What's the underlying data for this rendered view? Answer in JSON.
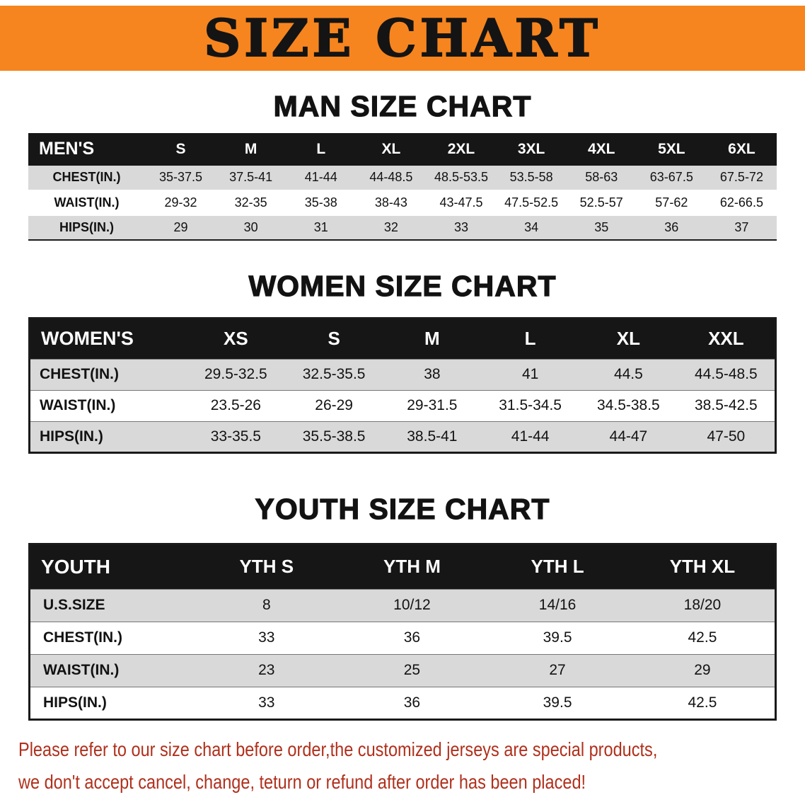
{
  "banner": {
    "title": "SIZE CHART"
  },
  "colors": {
    "banner-bg": "#f6851f",
    "table-header-bg": "#161616",
    "row-stripe": "#d9d9d9",
    "disclaimer-red": "#b0301c"
  },
  "sections": [
    {
      "key": "men",
      "heading": "MAN SIZE CHART",
      "table": {
        "header": [
          "MEN'S",
          "S",
          "M",
          "L",
          "XL",
          "2XL",
          "3XL",
          "4XL",
          "5XL",
          "6XL"
        ],
        "rows": [
          [
            "CHEST(IN.)",
            "35-37.5",
            "37.5-41",
            "41-44",
            "44-48.5",
            "48.5-53.5",
            "53.5-58",
            "58-63",
            "63-67.5",
            "67.5-72"
          ],
          [
            "WAIST(IN.)",
            "29-32",
            "32-35",
            "35-38",
            "38-43",
            "43-47.5",
            "47.5-52.5",
            "52.5-57",
            "57-62",
            "62-66.5"
          ],
          [
            "HIPS(IN.)",
            "29",
            "30",
            "31",
            "32",
            "33",
            "34",
            "35",
            "36",
            "37"
          ]
        ]
      }
    },
    {
      "key": "women",
      "heading": "WOMEN SIZE CHART",
      "table": {
        "header": [
          "WOMEN'S",
          "XS",
          "S",
          "M",
          "L",
          "XL",
          "XXL"
        ],
        "rows": [
          [
            "CHEST(IN.)",
            "29.5-32.5",
            "32.5-35.5",
            "38",
            "41",
            "44.5",
            "44.5-48.5"
          ],
          [
            "WAIST(IN.)",
            "23.5-26",
            "26-29",
            "29-31.5",
            "31.5-34.5",
            "34.5-38.5",
            "38.5-42.5"
          ],
          [
            "HIPS(IN.)",
            "33-35.5",
            "35.5-38.5",
            "38.5-41",
            "41-44",
            "44-47",
            "47-50"
          ]
        ]
      }
    },
    {
      "key": "youth",
      "heading": "YOUTH SIZE CHART",
      "table": {
        "header": [
          "YOUTH",
          "YTH S",
          "YTH M",
          "YTH L",
          "YTH XL"
        ],
        "rows": [
          [
            "U.S.SIZE",
            "8",
            "10/12",
            "14/16",
            "18/20"
          ],
          [
            "CHEST(IN.)",
            "33",
            "36",
            "39.5",
            "42.5"
          ],
          [
            "WAIST(IN.)",
            "23",
            "25",
            "27",
            "29"
          ],
          [
            "HIPS(IN.)",
            "33",
            "36",
            "39.5",
            "42.5"
          ]
        ]
      }
    }
  ],
  "disclaimer": {
    "line1": "Please refer to our size chart before order,the customized jerseys are special products,",
    "line2": "we don't accept cancel, change, teturn or refund after order has been placed!"
  }
}
